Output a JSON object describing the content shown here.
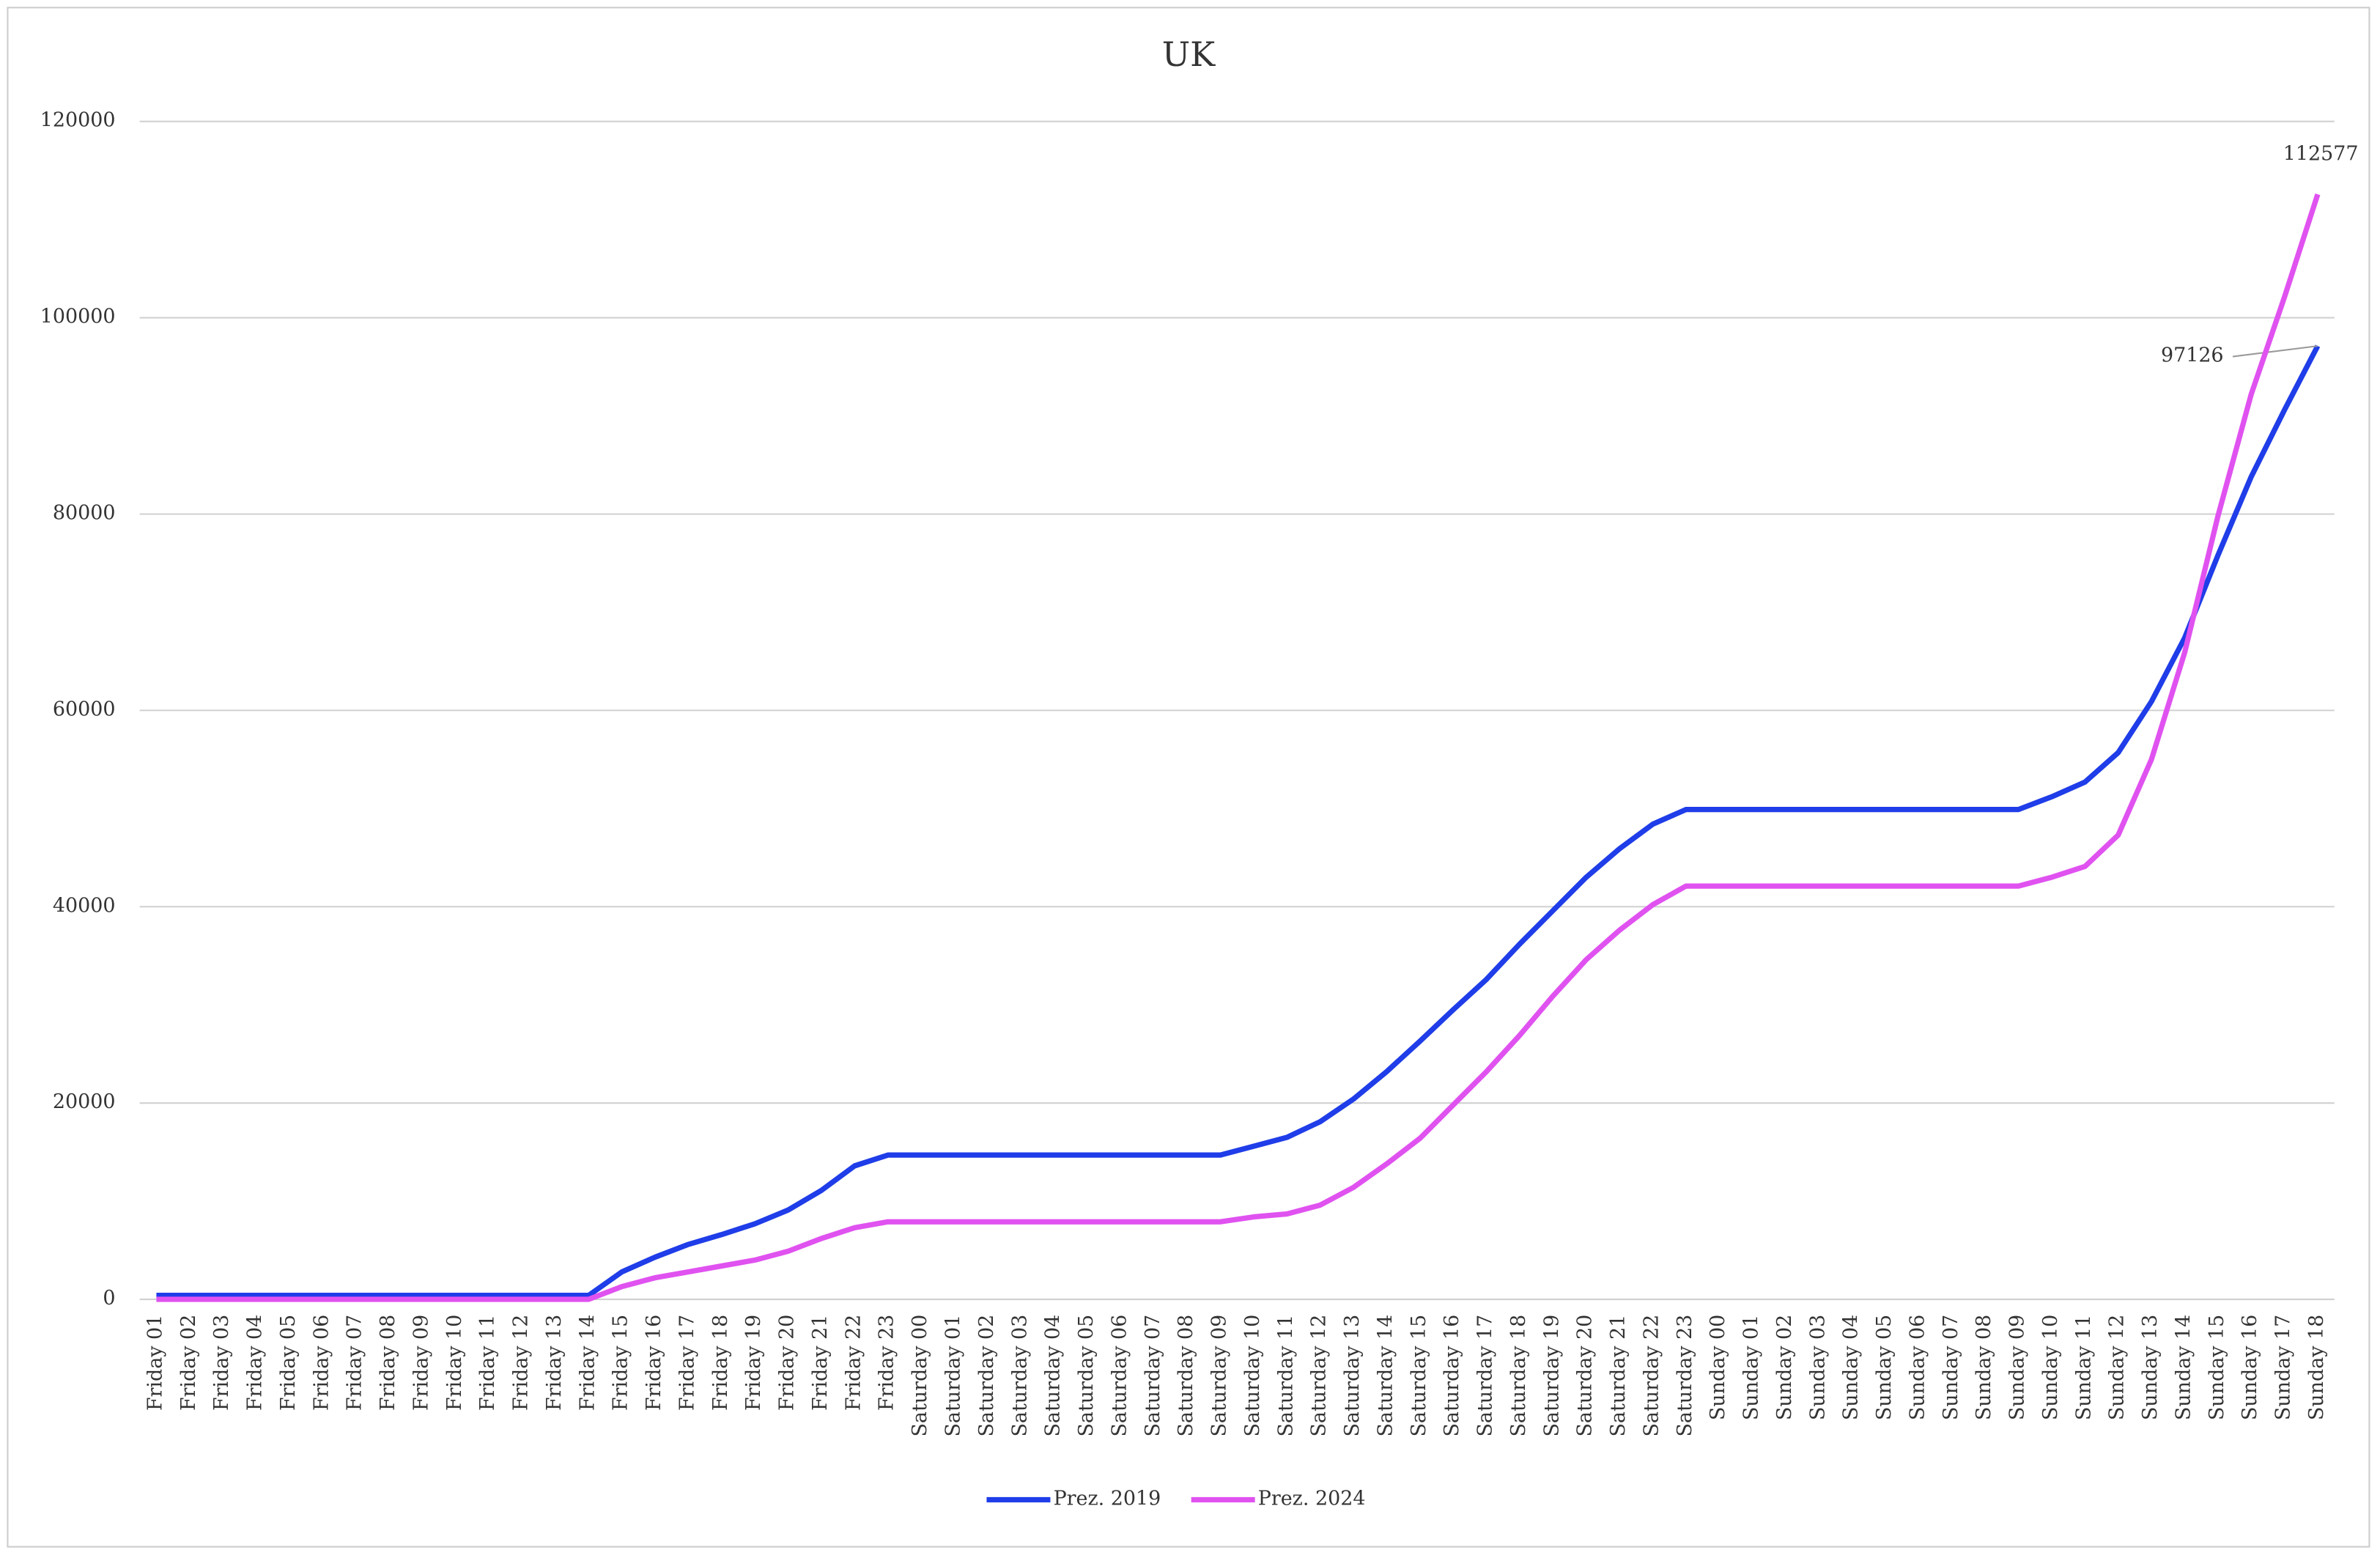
{
  "chart_data": {
    "type": "line",
    "title": "UK",
    "categories": [
      "Friday 01",
      "Friday 02",
      "Friday 03",
      "Friday 04",
      "Friday 05",
      "Friday 06",
      "Friday 07",
      "Friday 08",
      "Friday 09",
      "Friday 10",
      "Friday 11",
      "Friday 12",
      "Friday 13",
      "Friday 14",
      "Friday 15",
      "Friday 16",
      "Friday 17",
      "Friday 18",
      "Friday 19",
      "Friday 20",
      "Friday 21",
      "Friday 22",
      "Friday 23",
      "Saturday 00",
      "Saturday 01",
      "Saturday 02",
      "Saturday 03",
      "Saturday 04",
      "Saturday 05",
      "Saturday 06",
      "Saturday 07",
      "Saturday 08",
      "Saturday 09",
      "Saturday 10",
      "Saturday 11",
      "Saturday 12",
      "Saturday 13",
      "Saturday 14",
      "Saturday 15",
      "Saturday 16",
      "Saturday 17",
      "Saturday 18",
      "Saturday 19",
      "Saturday 20",
      "Saturday 21",
      "Saturday 22",
      "Saturday 23",
      "Sunday 00",
      "Sunday 01",
      "Sunday 02",
      "Sunday 03",
      "Sunday 04",
      "Sunday 05",
      "Sunday 06",
      "Sunday 07",
      "Sunday 08",
      "Sunday 09",
      "Sunday 10",
      "Sunday 11",
      "Sunday 12",
      "Sunday 13",
      "Sunday 14",
      "Sunday 15",
      "Sunday 16",
      "Sunday 17",
      "Sunday 18"
    ],
    "series": [
      {
        "name": "Prez. 2019",
        "color": "#1f3de8",
        "values": [
          400,
          400,
          400,
          400,
          400,
          400,
          400,
          400,
          400,
          400,
          400,
          400,
          400,
          400,
          2800,
          4300,
          5600,
          6600,
          7700,
          9100,
          11100,
          13600,
          14700,
          14700,
          14700,
          14700,
          14700,
          14700,
          14700,
          14700,
          14700,
          14700,
          14700,
          15600,
          16500,
          18100,
          20400,
          23200,
          26300,
          29500,
          32600,
          36200,
          39600,
          43000,
          45900,
          48400,
          49900,
          49900,
          49900,
          49900,
          49900,
          49900,
          49900,
          49900,
          49900,
          49900,
          49900,
          51200,
          52700,
          55700,
          60900,
          67400,
          75800,
          83800,
          90600,
          97126
        ]
      },
      {
        "name": "Prez. 2024",
        "color": "#e052f0",
        "values": [
          0,
          0,
          0,
          0,
          0,
          0,
          0,
          0,
          0,
          0,
          0,
          0,
          0,
          0,
          1300,
          2200,
          2800,
          3400,
          4000,
          4900,
          6200,
          7300,
          7900,
          7900,
          7900,
          7900,
          7900,
          7900,
          7900,
          7900,
          7900,
          7900,
          7900,
          8400,
          8700,
          9600,
          11400,
          13800,
          16400,
          19800,
          23200,
          26900,
          30900,
          34600,
          37600,
          40200,
          42100,
          42100,
          42100,
          42100,
          42100,
          42100,
          42100,
          42100,
          42100,
          42100,
          42100,
          43000,
          44100,
          47300,
          55000,
          65900,
          79800,
          92200,
          102100,
          112577
        ]
      }
    ],
    "ylim": [
      0,
      120000
    ],
    "yticks": [
      0,
      20000,
      40000,
      60000,
      80000,
      100000,
      120000
    ],
    "grid": true,
    "legend": "bottom"
  }
}
